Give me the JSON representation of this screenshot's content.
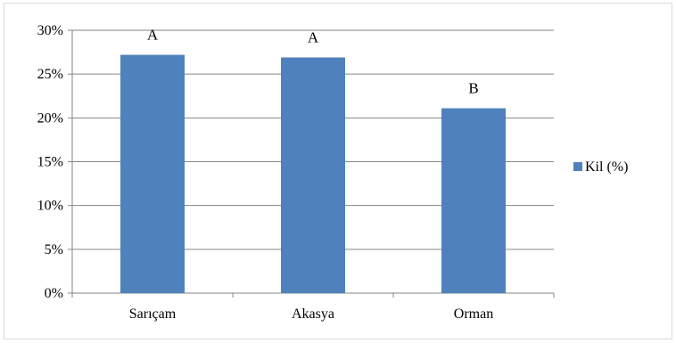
{
  "chart_data": {
    "type": "bar",
    "categories": [
      "Sarıçam",
      "Akasya",
      "Orman"
    ],
    "series": [
      {
        "name": "Kil (%)",
        "values": [
          27.2,
          26.9,
          21.1
        ],
        "color": "#4f81bd"
      }
    ],
    "data_labels": [
      "A",
      "A",
      "B"
    ],
    "y_ticks": [
      "0%",
      "5%",
      "10%",
      "15%",
      "20%",
      "25%",
      "30%"
    ],
    "ylim": [
      0,
      30
    ],
    "grid": true,
    "legend_position": "right",
    "gridline_color": "#868686"
  }
}
